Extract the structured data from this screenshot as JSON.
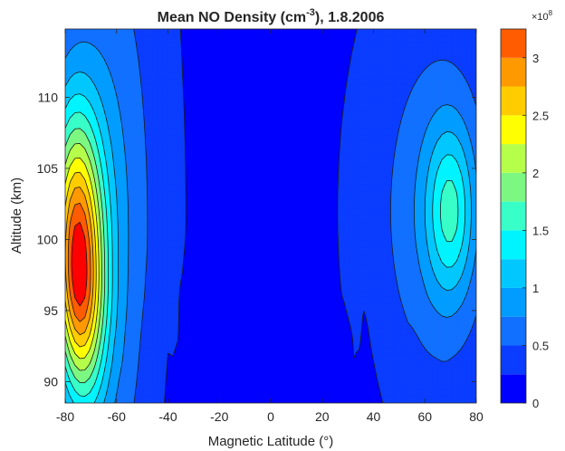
{
  "chart_data": {
    "type": "contour",
    "title_main": "Mean NO Density (cm",
    "title_sup": "-3",
    "title_tail": "), 1.8.2006",
    "xlabel": "Magnetic Latitude (°)",
    "ylabel": "Altitude (km)",
    "xlim": [
      -80,
      80
    ],
    "ylim": [
      88.5,
      114.8
    ],
    "x_ticks": [
      -80,
      -60,
      -40,
      -20,
      0,
      20,
      40,
      60,
      80
    ],
    "y_ticks": [
      90,
      95,
      100,
      105,
      110
    ],
    "colorbar": {
      "exponent_base": "×10",
      "exponent_power": "8",
      "min": 0,
      "max": 3.25,
      "ticks": [
        0,
        0.5,
        1,
        1.5,
        2,
        2.5,
        3
      ],
      "tick_labels": [
        "0",
        "0.5",
        "1",
        "1.5",
        "2",
        "2.5",
        "3"
      ],
      "level_step": 0.25,
      "colors": [
        "#0000ff",
        "#0a3dff",
        "#1170ff",
        "#009cff",
        "#00c8ff",
        "#00f4ff",
        "#38ffc8",
        "#7cf882",
        "#b5ff4a",
        "#ffff00",
        "#ffcc00",
        "#ff9900",
        "#ff5c00",
        "#ff0000"
      ]
    },
    "peaks": [
      {
        "x": -75,
        "y": 98,
        "value": 3.1
      },
      {
        "x": 70,
        "y": 102,
        "value": 1.6
      }
    ],
    "grid": false
  }
}
